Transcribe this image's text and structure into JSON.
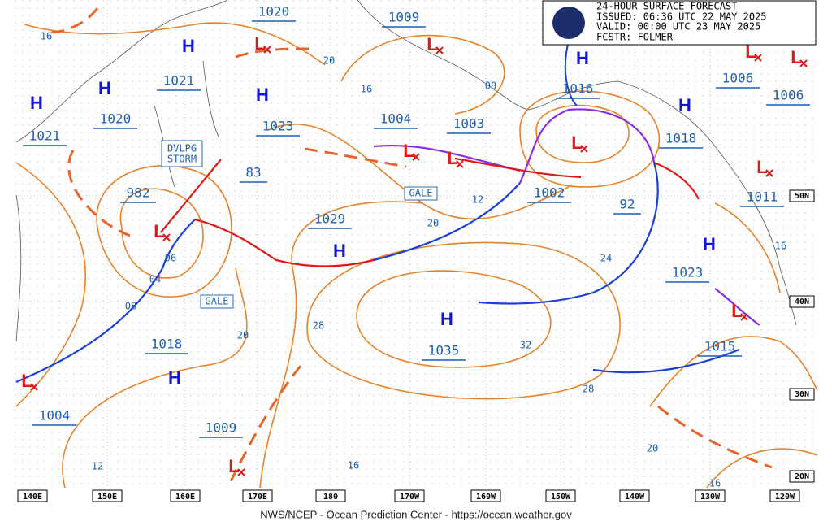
{
  "header": {
    "lines": [
      "24-HOUR SURFACE FORECAST",
      "ISSUED: 06:36 UTC 22 MAY 2025",
      "VALID:  00:00 UTC 23 MAY 2025",
      "FCSTR:  FOLMER"
    ]
  },
  "footer": "NWS/NCEP - Ocean Prediction Center - https://ocean.weather.gov",
  "longitude_labels": [
    "140E",
    "150E",
    "160E",
    "170E",
    "180",
    "170W",
    "160W",
    "150W",
    "140W",
    "130W",
    "120W"
  ],
  "latitude_labels": [
    "50N",
    "40N",
    "30N",
    "20N"
  ],
  "pressure_labels": [
    "1020",
    "1009",
    "1021",
    "1020",
    "1023",
    "1004",
    "1003",
    "1016",
    "1006",
    "1006",
    "1018",
    "1011",
    "1002",
    "92",
    "982",
    "83",
    "1029",
    "1023",
    "1035",
    "1015",
    "1018",
    "1004",
    "1009",
    "1021"
  ],
  "isobar_labels": [
    "16",
    "20",
    "16",
    "08",
    "12",
    "20",
    "24",
    "96",
    "04",
    "08",
    "28",
    "32",
    "20",
    "28",
    "20",
    "12",
    "16",
    "16",
    "16"
  ],
  "highs": [
    "H",
    "H",
    "H",
    "H",
    "H",
    "H",
    "H",
    "H",
    "H",
    "H"
  ],
  "lows": [
    "L",
    "L",
    "L",
    "L",
    "L",
    "L",
    "L",
    "L",
    "L",
    "L",
    "L",
    "L"
  ],
  "boxes": {
    "storm": [
      "DVLPG",
      "STORM"
    ],
    "gale_1": "GALE",
    "gale_2": "GALE"
  }
}
